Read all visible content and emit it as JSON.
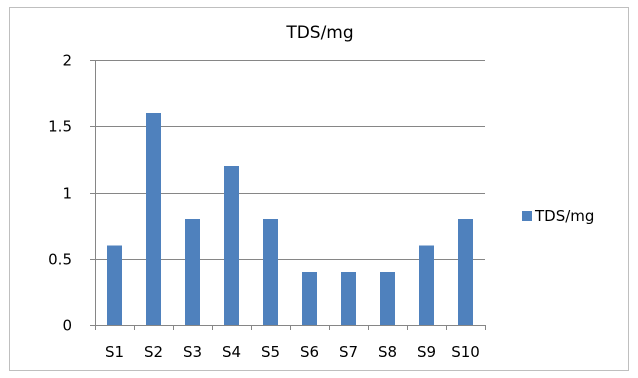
{
  "chart_data": {
    "type": "bar",
    "title": "TDS/mg",
    "xlabel": "",
    "ylabel": "",
    "categories": [
      "S1",
      "S2",
      "S3",
      "S4",
      "S5",
      "S6",
      "S7",
      "S8",
      "S9",
      "S10"
    ],
    "series": [
      {
        "name": "TDS/mg",
        "values": [
          0.6,
          1.6,
          0.8,
          1.2,
          0.8,
          0.4,
          0.4,
          0.4,
          0.6,
          0.8
        ]
      }
    ],
    "ylim": [
      0,
      2
    ],
    "yticks": [
      0,
      0.5,
      1,
      1.5,
      2
    ],
    "ytick_labels": [
      "0",
      "0.5",
      "1",
      "1.5",
      "2"
    ],
    "grid": true,
    "legend_position": "right",
    "colors": {
      "bar": "#4f81bd",
      "grid": "#868686",
      "axis": "#868686"
    }
  }
}
